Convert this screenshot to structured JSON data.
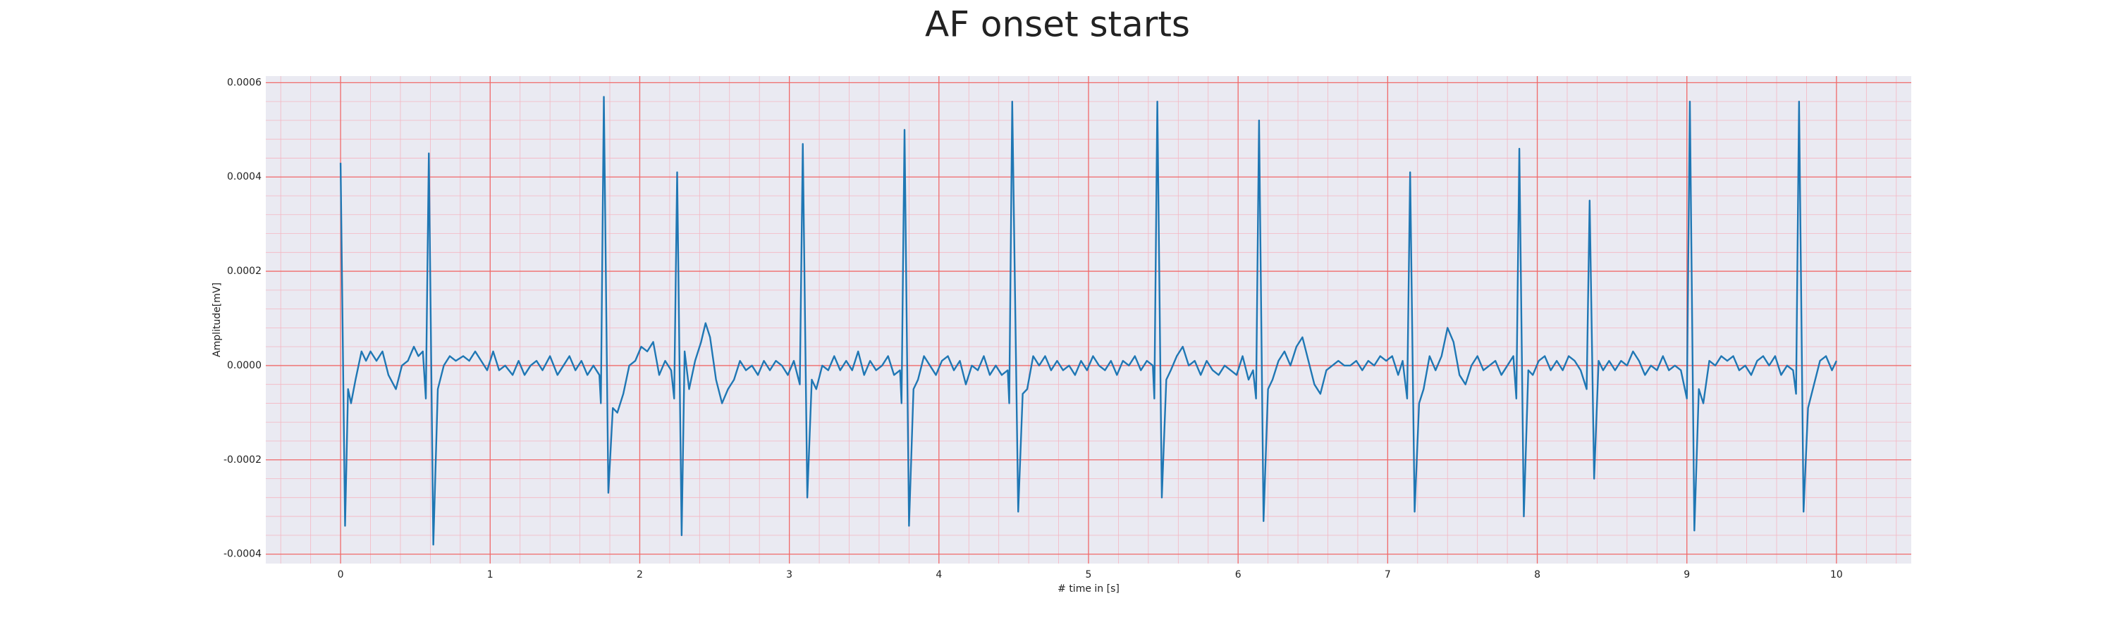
{
  "chart_data": {
    "type": "line",
    "title": "AF onset starts",
    "x_label": "# time in [s]",
    "y_label": "Amplitude[mV]",
    "color": "#1f77b4",
    "grid": true,
    "minor_grid": true,
    "xlim": [
      -0.5,
      10.5
    ],
    "xticks": [
      0,
      1,
      2,
      3,
      4,
      5,
      6,
      7,
      8,
      9,
      10
    ],
    "ylim": [
      -0.00042,
      0.000614
    ],
    "yticks": [
      -0.0004,
      -0.0002,
      {
        "value": 0,
        "label": "0.0000"
      },
      0.0002,
      0.0004,
      0.0006
    ],
    "x": [
      0.0,
      0.03,
      0.05,
      0.07,
      0.1,
      0.14,
      0.17,
      0.2,
      0.24,
      0.28,
      0.32,
      0.37,
      0.41,
      0.45,
      0.49,
      0.52,
      0.55,
      0.57,
      0.59,
      0.62,
      0.65,
      0.69,
      0.73,
      0.77,
      0.82,
      0.86,
      0.9,
      0.94,
      0.98,
      1.02,
      1.06,
      1.1,
      1.15,
      1.19,
      1.23,
      1.27,
      1.31,
      1.35,
      1.4,
      1.45,
      1.49,
      1.53,
      1.57,
      1.61,
      1.65,
      1.69,
      1.73,
      1.74,
      1.76,
      1.79,
      1.82,
      1.85,
      1.89,
      1.93,
      1.97,
      2.01,
      2.05,
      2.09,
      2.13,
      2.17,
      2.21,
      2.23,
      2.25,
      2.28,
      2.3,
      2.33,
      2.37,
      2.41,
      2.44,
      2.47,
      2.51,
      2.55,
      2.59,
      2.63,
      2.67,
      2.71,
      2.75,
      2.79,
      2.83,
      2.87,
      2.91,
      2.95,
      2.99,
      3.03,
      3.07,
      3.09,
      3.12,
      3.15,
      3.18,
      3.22,
      3.26,
      3.3,
      3.34,
      3.38,
      3.42,
      3.46,
      3.5,
      3.54,
      3.58,
      3.62,
      3.66,
      3.7,
      3.74,
      3.75,
      3.77,
      3.8,
      3.83,
      3.86,
      3.9,
      3.94,
      3.98,
      4.02,
      4.06,
      4.1,
      4.14,
      4.18,
      4.22,
      4.26,
      4.3,
      4.34,
      4.38,
      4.42,
      4.46,
      4.47,
      4.49,
      4.53,
      4.56,
      4.59,
      4.63,
      4.67,
      4.71,
      4.75,
      4.79,
      4.83,
      4.87,
      4.91,
      4.95,
      4.99,
      5.03,
      5.07,
      5.11,
      5.15,
      5.19,
      5.23,
      5.27,
      5.31,
      5.35,
      5.39,
      5.43,
      5.44,
      5.46,
      5.49,
      5.52,
      5.55,
      5.59,
      5.63,
      5.67,
      5.71,
      5.75,
      5.79,
      5.83,
      5.87,
      5.91,
      5.95,
      5.99,
      6.03,
      6.07,
      6.1,
      6.12,
      6.14,
      6.17,
      6.2,
      6.23,
      6.27,
      6.31,
      6.35,
      6.39,
      6.43,
      6.47,
      6.51,
      6.55,
      6.59,
      6.63,
      6.67,
      6.71,
      6.75,
      6.79,
      6.83,
      6.87,
      6.91,
      6.95,
      6.99,
      7.03,
      7.07,
      7.1,
      7.13,
      7.15,
      7.18,
      7.21,
      7.24,
      7.28,
      7.32,
      7.36,
      7.4,
      7.44,
      7.48,
      7.52,
      7.56,
      7.6,
      7.64,
      7.68,
      7.72,
      7.76,
      7.8,
      7.84,
      7.86,
      7.88,
      7.91,
      7.94,
      7.97,
      8.01,
      8.05,
      8.09,
      8.13,
      8.17,
      8.21,
      8.25,
      8.29,
      8.33,
      8.35,
      8.38,
      8.41,
      8.44,
      8.48,
      8.52,
      8.56,
      8.6,
      8.64,
      8.68,
      8.72,
      8.76,
      8.8,
      8.84,
      8.88,
      8.92,
      8.96,
      9.0,
      9.02,
      9.05,
      9.08,
      9.11,
      9.15,
      9.19,
      9.23,
      9.27,
      9.31,
      9.35,
      9.39,
      9.43,
      9.47,
      9.51,
      9.55,
      9.59,
      9.63,
      9.67,
      9.71,
      9.73,
      9.75,
      9.78,
      9.81,
      9.85,
      9.89,
      9.93,
      9.97,
      10.0
    ],
    "values": [
      0.00043,
      -0.00034,
      -5e-05,
      -8e-05,
      -3e-05,
      3e-05,
      1e-05,
      3e-05,
      1e-05,
      3e-05,
      -2e-05,
      -5e-05,
      0,
      1e-05,
      4e-05,
      2e-05,
      3e-05,
      -7e-05,
      0.00045,
      -0.00038,
      -5e-05,
      0,
      2e-05,
      1e-05,
      2e-05,
      1e-05,
      3e-05,
      1e-05,
      -1e-05,
      3e-05,
      -1e-05,
      0,
      -2e-05,
      1e-05,
      -2e-05,
      0,
      1e-05,
      -1e-05,
      2e-05,
      -2e-05,
      0,
      2e-05,
      -1e-05,
      1e-05,
      -2e-05,
      0,
      -2e-05,
      -8e-05,
      0.00057,
      -0.00027,
      -9e-05,
      -0.0001,
      -6e-05,
      0,
      1e-05,
      4e-05,
      3e-05,
      5e-05,
      -2e-05,
      1e-05,
      -1e-05,
      -7e-05,
      0.00041,
      -0.00036,
      3e-05,
      -5e-05,
      1e-05,
      5e-05,
      9e-05,
      6e-05,
      -3e-05,
      -8e-05,
      -5e-05,
      -3e-05,
      1e-05,
      -1e-05,
      0,
      -2e-05,
      1e-05,
      -1e-05,
      1e-05,
      0,
      -2e-05,
      1e-05,
      -4e-05,
      0.00047,
      -0.00028,
      -3e-05,
      -5e-05,
      0,
      -1e-05,
      2e-05,
      -1e-05,
      1e-05,
      -1e-05,
      3e-05,
      -2e-05,
      1e-05,
      -1e-05,
      0,
      2e-05,
      -2e-05,
      -1e-05,
      -8e-05,
      0.0005,
      -0.00034,
      -5e-05,
      -3e-05,
      2e-05,
      0,
      -2e-05,
      1e-05,
      2e-05,
      -1e-05,
      1e-05,
      -4e-05,
      0,
      -1e-05,
      2e-05,
      -2e-05,
      0,
      -2e-05,
      -1e-05,
      -8e-05,
      0.00056,
      -0.00031,
      -6e-05,
      -5e-05,
      2e-05,
      0,
      2e-05,
      -1e-05,
      1e-05,
      -1e-05,
      0,
      -2e-05,
      1e-05,
      -1e-05,
      2e-05,
      0,
      -1e-05,
      1e-05,
      -2e-05,
      1e-05,
      0,
      2e-05,
      -1e-05,
      1e-05,
      0,
      -7e-05,
      0.00056,
      -0.00028,
      -3e-05,
      -1e-05,
      2e-05,
      4e-05,
      0,
      1e-05,
      -2e-05,
      1e-05,
      -1e-05,
      -2e-05,
      0,
      -1e-05,
      -2e-05,
      2e-05,
      -3e-05,
      -1e-05,
      -7e-05,
      0.00052,
      -0.00033,
      -5e-05,
      -3e-05,
      1e-05,
      3e-05,
      0,
      4e-05,
      6e-05,
      1e-05,
      -4e-05,
      -6e-05,
      -1e-05,
      0,
      1e-05,
      0,
      0,
      1e-05,
      -1e-05,
      1e-05,
      0,
      2e-05,
      1e-05,
      2e-05,
      -2e-05,
      1e-05,
      -7e-05,
      0.00041,
      -0.00031,
      -8e-05,
      -5e-05,
      2e-05,
      -1e-05,
      2e-05,
      8e-05,
      5e-05,
      -2e-05,
      -4e-05,
      0,
      2e-05,
      -1e-05,
      0,
      1e-05,
      -2e-05,
      0,
      2e-05,
      -7e-05,
      0.00046,
      -0.00032,
      -1e-05,
      -2e-05,
      1e-05,
      2e-05,
      -1e-05,
      1e-05,
      -1e-05,
      2e-05,
      1e-05,
      -1e-05,
      -5e-05,
      0.00035,
      -0.00024,
      1e-05,
      -1e-05,
      1e-05,
      -1e-05,
      1e-05,
      0,
      3e-05,
      1e-05,
      -2e-05,
      0,
      -1e-05,
      2e-05,
      -1e-05,
      0,
      -1e-05,
      -7e-05,
      0.00056,
      -0.00035,
      -5e-05,
      -8e-05,
      1e-05,
      0,
      2e-05,
      1e-05,
      2e-05,
      -1e-05,
      0,
      -2e-05,
      1e-05,
      2e-05,
      0,
      2e-05,
      -2e-05,
      0,
      -1e-05,
      -6e-05,
      0.00056,
      -0.00031,
      -9e-05,
      -4e-05,
      1e-05,
      2e-05,
      -1e-05,
      1e-05
    ]
  }
}
